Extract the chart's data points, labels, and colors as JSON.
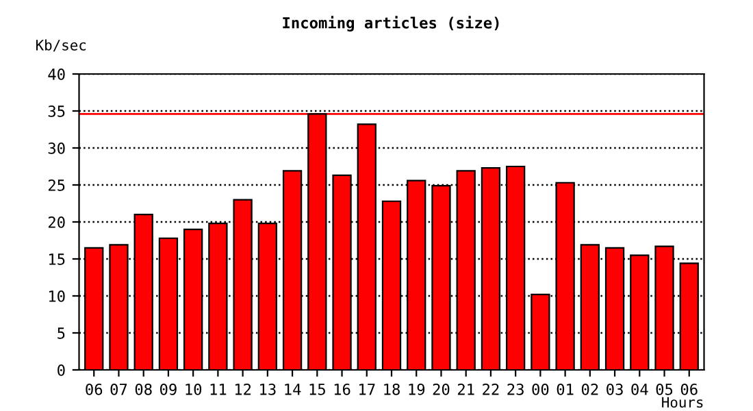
{
  "chart_data": {
    "type": "bar",
    "title": "Incoming articles (size)",
    "ylabel": "Kb/sec",
    "xlabel": "Hours",
    "categories": [
      "06",
      "07",
      "08",
      "09",
      "10",
      "11",
      "12",
      "13",
      "14",
      "15",
      "16",
      "17",
      "18",
      "19",
      "20",
      "21",
      "22",
      "23",
      "00",
      "01",
      "02",
      "03",
      "04",
      "05",
      "06"
    ],
    "series": [
      {
        "color": "#ff0000",
        "values": [
          16.5,
          16.9,
          21.0,
          17.8,
          19.0,
          19.8,
          23.0,
          19.8,
          26.9,
          34.6,
          26.3,
          33.2,
          22.8,
          25.6,
          24.9,
          26.9,
          27.3,
          27.5,
          10.2,
          25.3,
          16.9,
          16.5,
          15.5,
          16.7,
          14.4
        ]
      }
    ],
    "ylim": [
      0,
      40
    ],
    "yticks": [
      0,
      5,
      10,
      15,
      20,
      25,
      30,
      35,
      40
    ],
    "grid": "y",
    "line_style": "dotted",
    "ref_lines": [
      {
        "axis": "y",
        "value": 34.6,
        "color": "#ff0000",
        "line_style": "solid"
      }
    ]
  }
}
